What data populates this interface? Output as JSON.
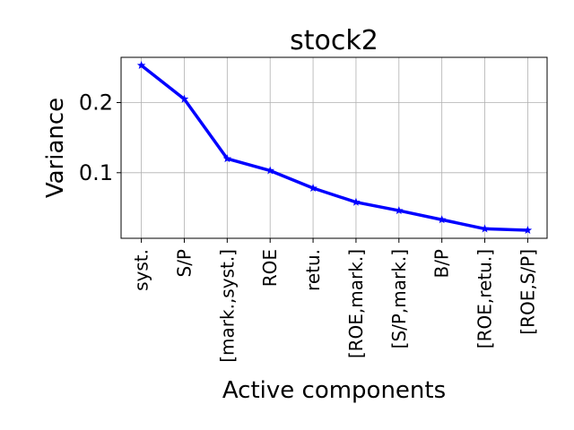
{
  "chart_data": {
    "type": "line",
    "title": "stock2",
    "xlabel": "Active components",
    "ylabel": "Variance",
    "categories": [
      "syst.",
      "S/P",
      "[mark.,syst.]",
      "ROE",
      "retu.",
      "[ROE,mark.]",
      "[S/P,mark.]",
      "B/P",
      "[ROE,retu.]",
      "[ROE,S/P]"
    ],
    "series": [
      {
        "values": [
          0.253,
          0.205,
          0.12,
          0.103,
          0.078,
          0.058,
          0.046,
          0.033,
          0.02,
          0.018
        ]
      }
    ],
    "yticks": [
      0.1,
      0.2
    ],
    "ytick_labels": [
      "0.1",
      "0.2"
    ],
    "ylim": [
      0.0065,
      0.2645
    ],
    "grid": true,
    "line_color": "#0000ff",
    "marker": "star"
  }
}
